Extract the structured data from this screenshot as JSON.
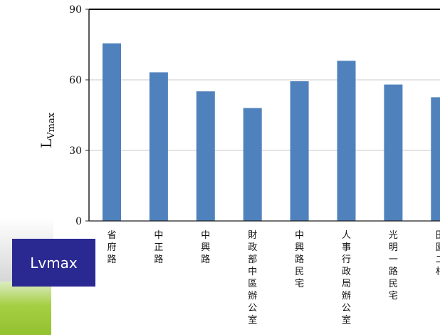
{
  "badge": {
    "text": "Lvmax"
  },
  "chart_data": {
    "type": "bar",
    "ylabel_main": "L",
    "ylabel_sub": "Vmax",
    "ylim": [
      0,
      90
    ],
    "yticks": [
      "0",
      "30",
      "60",
      "90"
    ],
    "categories": [
      "省府路",
      "中正路",
      "中興路",
      "財政部中區辦公室",
      "中興路民宅",
      "人事行政局辦公室",
      "光明一路民宅",
      "田園二村"
    ],
    "values": [
      75.5,
      63.2,
      55.1,
      48.0,
      59.4,
      68.1,
      58.0,
      52.6
    ],
    "color": "#4f81bd",
    "grid": true
  }
}
